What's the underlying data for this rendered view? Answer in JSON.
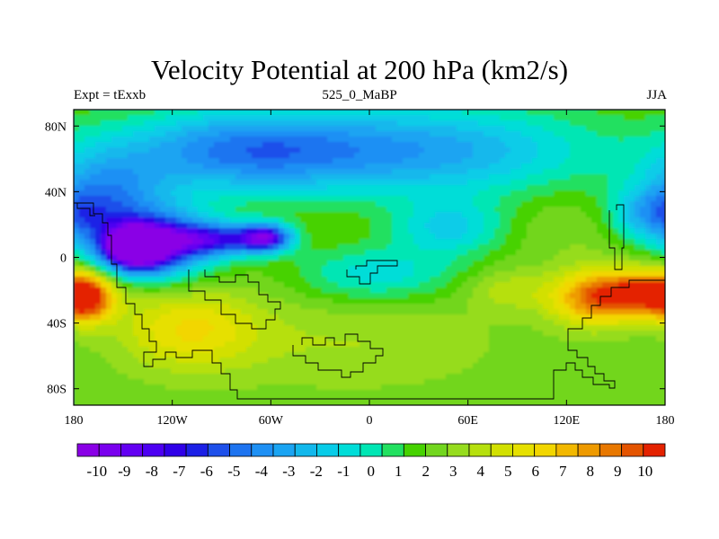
{
  "title": "Velocity Potential at 200 hPa (km2/s)",
  "subtitle_left": "Expt = tExxb",
  "subtitle_center": "525_0_MaBP",
  "subtitle_right": "JJA",
  "map": {
    "lon_range": [
      -180,
      180
    ],
    "lat_range": [
      -90,
      90
    ],
    "x_ticks": [
      {
        "value": -180,
        "label": "180"
      },
      {
        "value": -120,
        "label": "120W"
      },
      {
        "value": -60,
        "label": "60W"
      },
      {
        "value": 0,
        "label": "0"
      },
      {
        "value": 60,
        "label": "60E"
      },
      {
        "value": 120,
        "label": "120E"
      },
      {
        "value": 180,
        "label": "180"
      }
    ],
    "y_ticks": [
      {
        "value": 80,
        "label": "80N"
      },
      {
        "value": 40,
        "label": "40N"
      },
      {
        "value": 0,
        "label": "0"
      },
      {
        "value": -40,
        "label": "40S"
      },
      {
        "value": -80,
        "label": "80S"
      }
    ]
  },
  "colorbar": {
    "labels": [
      "-10",
      "-9",
      "-8",
      "-7",
      "-6",
      "-5",
      "-4",
      "-3",
      "-2",
      "-1",
      "0",
      "1",
      "2",
      "3",
      "4",
      "5",
      "6",
      "7",
      "8",
      "9",
      "10"
    ],
    "colors": [
      "#8a00e6",
      "#7a00ee",
      "#6300f2",
      "#4d00f2",
      "#3000e8",
      "#1c20e6",
      "#1e50ea",
      "#1e74f0",
      "#1e90f4",
      "#1aa4f2",
      "#12b8ec",
      "#08cce8",
      "#00ddd8",
      "#00e6b4",
      "#22e060",
      "#46d200",
      "#72d61e",
      "#96dc1e",
      "#b6e00e",
      "#d2e000",
      "#e6e000",
      "#f2d600",
      "#f2b800",
      "#ee9a00",
      "#e87800",
      "#e45400",
      "#e42200"
    ]
  },
  "fields": {
    "centers": [
      {
        "lon": -143,
        "lat": 6,
        "value": -10.2,
        "sx": 14,
        "sy": 9
      },
      {
        "lon": -130,
        "lat": 8,
        "value": -6,
        "sx": 26,
        "sy": 16
      },
      {
        "lon": -63,
        "lat": 12,
        "value": -7.4,
        "sx": 11,
        "sy": 6
      },
      {
        "lon": -95,
        "lat": 11,
        "value": -5,
        "sx": 22,
        "sy": 7
      },
      {
        "lon": -160,
        "lat": 40,
        "value": -2.5,
        "sx": 25,
        "sy": 18
      },
      {
        "lon": -80,
        "lat": 65,
        "value": -4,
        "sx": 55,
        "sy": 18
      },
      {
        "lon": 40,
        "lat": 65,
        "value": -3,
        "sx": 70,
        "sy": 20
      },
      {
        "lon": 50,
        "lat": 18,
        "value": -1.5,
        "sx": 25,
        "sy": 12
      },
      {
        "lon": 5,
        "lat": -10,
        "value": -1,
        "sx": 35,
        "sy": 12
      },
      {
        "lon": 170,
        "lat": -22,
        "value": 10.3,
        "sx": 22,
        "sy": 10
      },
      {
        "lon": 135,
        "lat": -25,
        "value": 7.5,
        "sx": 18,
        "sy": 12
      },
      {
        "lon": -172,
        "lat": -25,
        "value": 8,
        "sx": 10,
        "sy": 10
      },
      {
        "lon": 85,
        "lat": -20,
        "value": 4,
        "sx": 18,
        "sy": 9
      },
      {
        "lon": -110,
        "lat": -42,
        "value": 6,
        "sx": 30,
        "sy": 18
      },
      {
        "lon": -110,
        "lat": -32,
        "value": 2,
        "sx": 40,
        "sy": 10
      },
      {
        "lon": -10,
        "lat": -52,
        "value": 3.5,
        "sx": 60,
        "sy": 20
      },
      {
        "lon": 130,
        "lat": 20,
        "value": 3,
        "sx": 45,
        "sy": 14
      },
      {
        "lon": 175,
        "lat": 25,
        "value": -3,
        "sx": 20,
        "sy": 12
      }
    ]
  }
}
